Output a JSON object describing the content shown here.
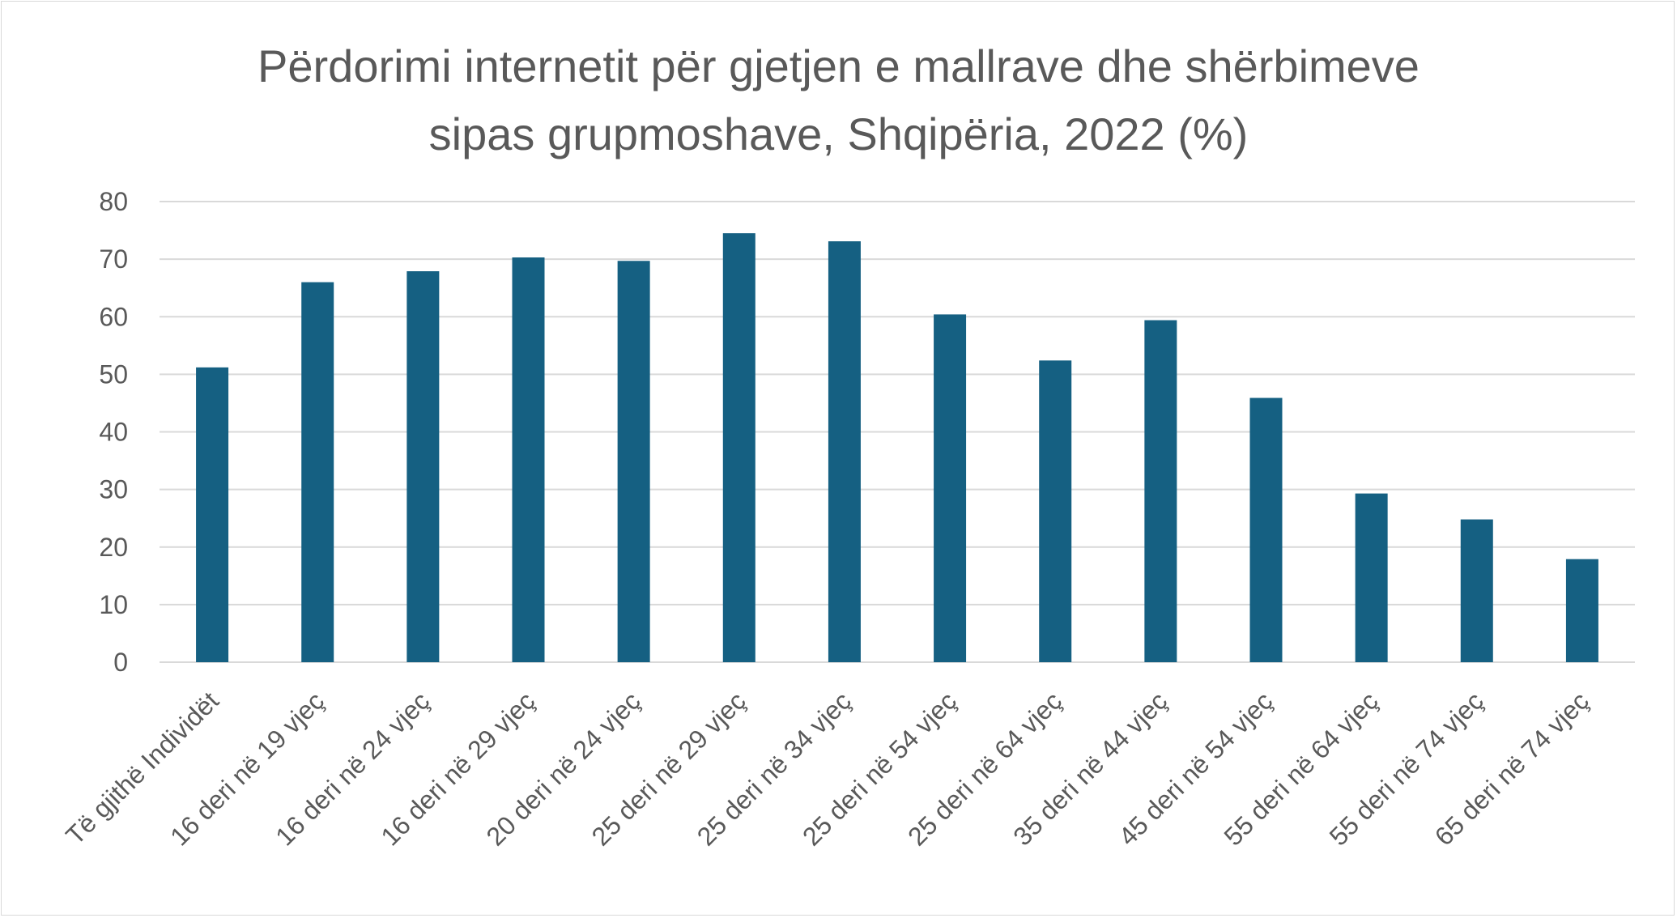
{
  "chart_data": {
    "type": "bar",
    "title_line1": "Përdorimi internetit për gjetjen e mallrave dhe shërbimeve",
    "title_line2": "sipas grupmoshave, Shqipëria, 2022 (%)",
    "categories": [
      "Të gjithë Individët",
      "16 deri në 19 vjeç",
      "16 deri në 24 vjeç",
      "16 deri në 29 vjeç",
      "20 deri në 24 vjeç",
      "25 deri në 29 vjeç",
      "25 deri në 34 vjeç",
      "25 deri në 54 vjeç",
      "25 deri në 64 vjeç",
      "35 deri në 44 vjeç",
      "45 deri në 54 vjeç",
      "55 deri në 64 vjeç",
      "55 deri në 74 vjeç",
      "65 deri në 74 vjeç"
    ],
    "values": [
      51.2,
      66.0,
      67.9,
      70.3,
      69.7,
      74.5,
      73.1,
      60.4,
      52.4,
      59.4,
      45.9,
      29.3,
      24.8,
      17.9
    ],
    "ylim": [
      0,
      80
    ],
    "yticks": [
      "0",
      "10",
      "20",
      "30",
      "40",
      "50",
      "60",
      "70",
      "80"
    ],
    "grid": true,
    "bar_color": "#156082",
    "grid_color": "#d9d9d9",
    "text_color": "#595959"
  }
}
